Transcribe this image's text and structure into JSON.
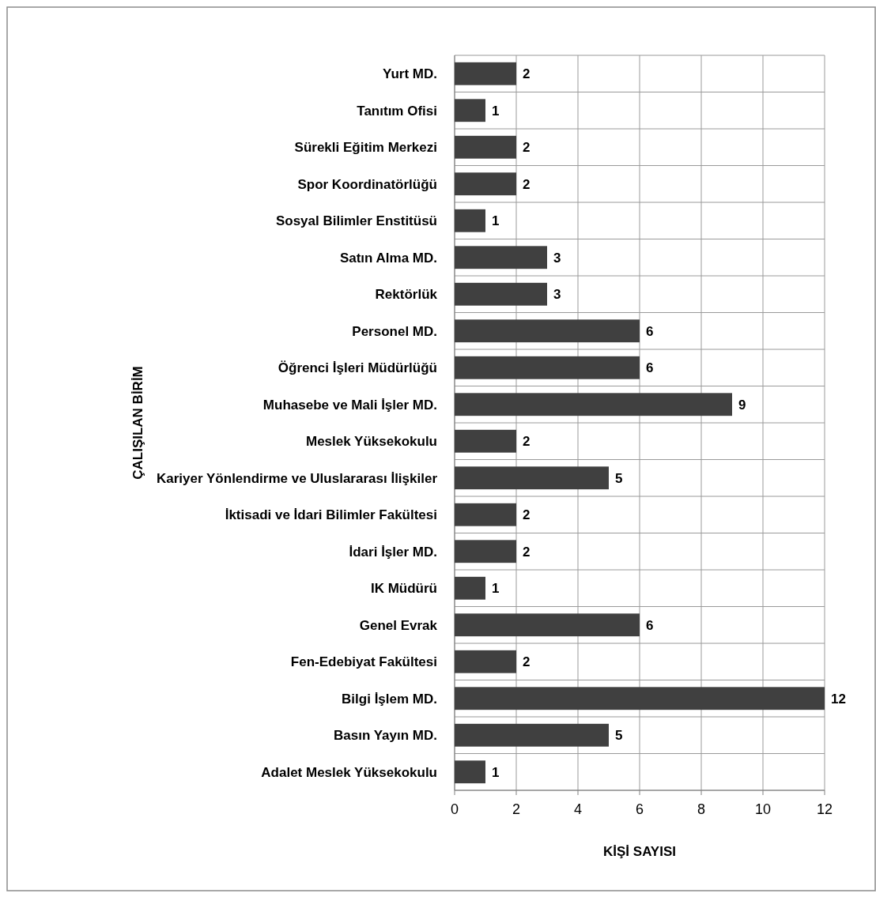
{
  "chart_data": {
    "type": "bar",
    "orientation": "horizontal",
    "xlabel": "KİŞİ SAYISI",
    "ylabel": "ÇALIŞILAN BİRİM",
    "categories": [
      "Yurt MD.",
      "Tanıtım Ofisi",
      "Sürekli Eğitim Merkezi",
      "Spor Koordinatörlüğü",
      "Sosyal Bilimler Enstitüsü",
      "Satın Alma MD.",
      "Rektörlük",
      "Personel MD.",
      "Öğrenci İşleri Müdürlüğü",
      "Muhasebe ve Mali İşler MD.",
      "Meslek Yüksekokulu",
      "Kariyer Yönlendirme ve Uluslararası İlişkiler",
      "İktisadi ve İdari Bilimler Fakültesi",
      "İdari İşler MD.",
      "IK Müdürü",
      "Genel Evrak",
      "Fen-Edebiyat Fakültesi",
      "Bilgi İşlem MD.",
      "Basın Yayın MD.",
      "Adalet Meslek Yüksekokulu"
    ],
    "values": [
      2,
      1,
      2,
      2,
      1,
      3,
      3,
      6,
      6,
      9,
      2,
      5,
      2,
      2,
      1,
      6,
      2,
      12,
      5,
      1
    ],
    "color": "#404040",
    "xlim": [
      0,
      12
    ],
    "xticks": [
      0,
      2,
      4,
      6,
      8,
      10,
      12
    ],
    "grid": true,
    "data_labels": true
  }
}
